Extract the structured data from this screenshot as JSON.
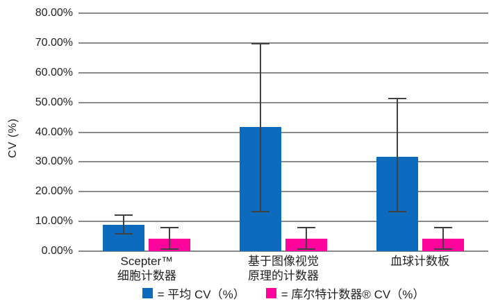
{
  "chart_data": {
    "type": "bar",
    "title": "",
    "ylabel": "CV (%)",
    "xlabel": "",
    "ylim": [
      0,
      80
    ],
    "grid": true,
    "legend_position": "bottom",
    "yticks": [
      "80.00%",
      "70.00%",
      "60.00%",
      "50.00%",
      "40.00%",
      "30.00%",
      "20.00%",
      "10.00%",
      "0.00%"
    ],
    "categories": [
      [
        "Scepter™",
        "细胞计数器"
      ],
      [
        "基于图像视觉",
        "原理的计数器"
      ],
      [
        "血球计数板"
      ]
    ],
    "series": [
      {
        "name": "平均 CV（%）",
        "legend_label": "= 平均 CV（%）",
        "color": "#0d6bbd",
        "values": [
          8.8,
          41.8,
          31.8
        ],
        "error_high": [
          12.3,
          70.0,
          51.5
        ],
        "error_low": [
          5.7,
          13.0,
          13.0
        ]
      },
      {
        "name": "库尔特计数器® CV（%）",
        "legend_label": "= 库尔特计数器® CV（%）",
        "color": "#fb059d",
        "values": [
          4.3,
          4.3,
          4.3
        ],
        "error_high": [
          8.2,
          8.2,
          8.2
        ],
        "error_low": [
          0.5,
          0.5,
          0.5
        ]
      }
    ],
    "style": {
      "gridline_color": "#8a8a8a",
      "error_bar_color": "#404040",
      "text_color": "#1f1f1f",
      "background": "#ffffff"
    }
  }
}
